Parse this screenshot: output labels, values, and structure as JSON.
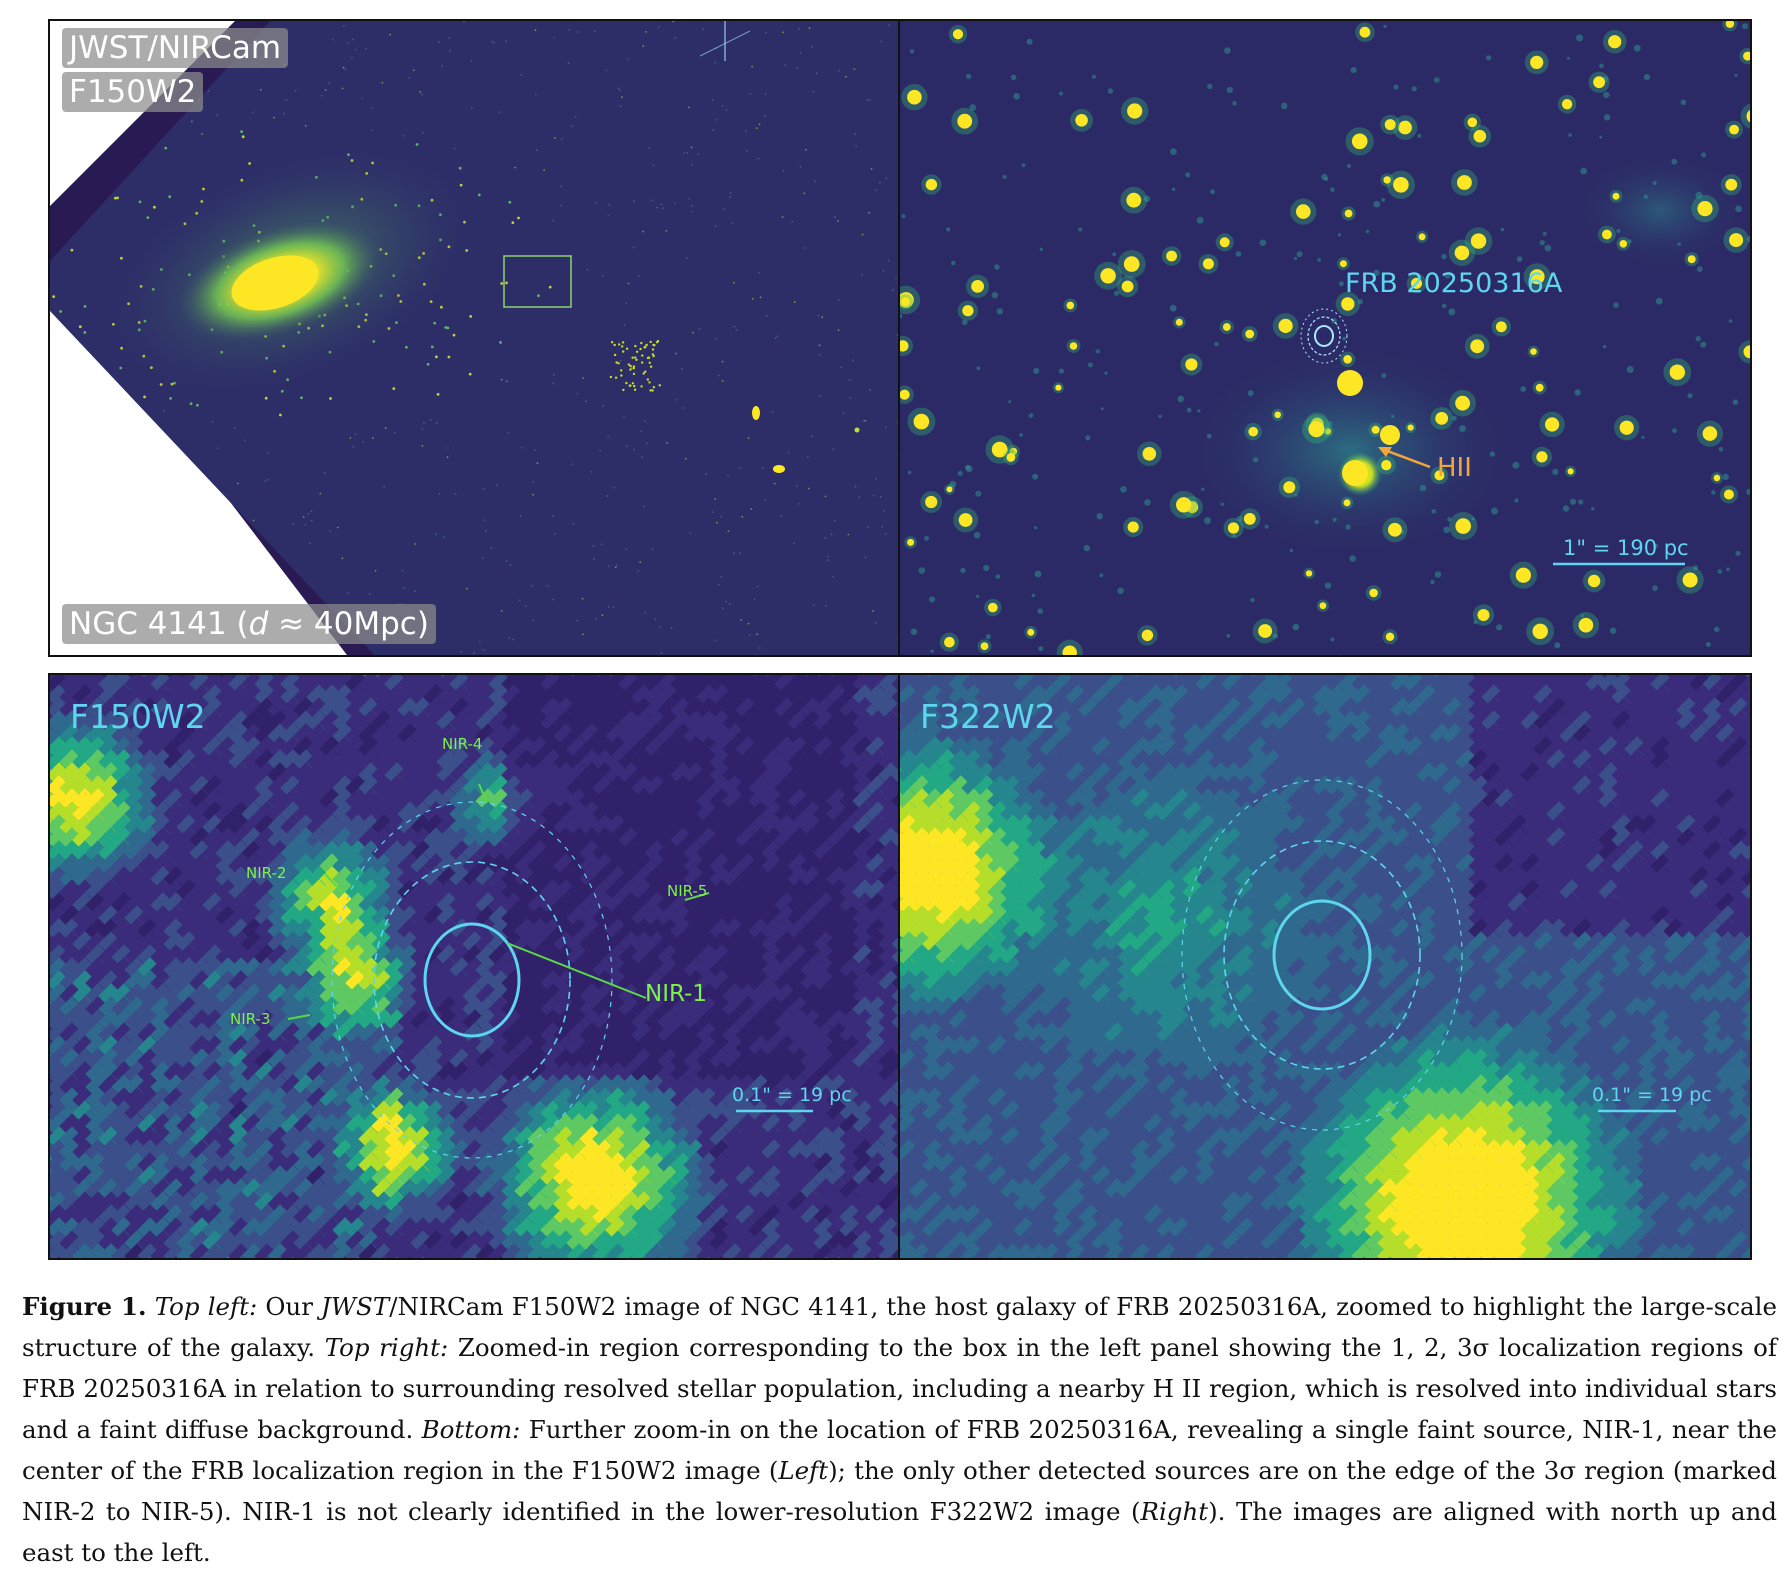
{
  "panels": {
    "top_left": {
      "label_instrument": "JWST/NIRCam",
      "label_filter": "F150W2",
      "label_target_prefix": "NGC 4141 (",
      "label_target_var": "d",
      "label_target_suffix": " ≈ 40Mpc)"
    },
    "top_right": {
      "frb_label": "FRB 20250316A",
      "hii_label": "HII",
      "scale_label": "1\" = 190 pc"
    },
    "bottom_left": {
      "filter": "F150W2",
      "sources": {
        "nir1": "NIR-1",
        "nir2": "NIR-2",
        "nir3": "NIR-3",
        "nir4": "NIR-4",
        "nir5": "NIR-5"
      },
      "scale_label": "0.1\" = 19 pc"
    },
    "bottom_right": {
      "filter": "F322W2",
      "scale_label": "0.1\" = 19 pc"
    }
  },
  "caption": {
    "fig_label": "Figure 1.",
    "seg1_italic": "Top left:",
    "seg2": " Our ",
    "seg3_italic": "JWST",
    "seg4": "/NIRCam F150W2 image of NGC 4141, the host galaxy of FRB 20250316A, zoomed to highlight the large-scale structure of the galaxy. ",
    "seg5_italic": "Top right:",
    "seg6": " Zoomed-in region corresponding to the box in the left panel showing the 1, 2, 3σ localization regions of FRB 20250316A in relation to surrounding resolved stellar population, including a nearby H II region, which is resolved into individual stars and a faint diffuse background. ",
    "seg7_italic": "Bottom:",
    "seg8": " Further zoom-in on the location of FRB 20250316A, revealing a single faint source, NIR-1, near the center of the FRB localization region in the F150W2 image (",
    "seg9_italic": "Left",
    "seg10": "); the only other detected sources are on the edge of the 3σ region (marked NIR-2 to NIR-5). NIR-1 is not clearly identified in the lower-resolution F322W2 image (",
    "seg11_italic": "Right",
    "seg12": "). The images are aligned with north up and east to the left."
  },
  "colors": {
    "bg_dark": "#2b1d5c",
    "bg_mid": "#33376e",
    "viridis_yellow": "#fde725",
    "viridis_green": "#7ad151",
    "viridis_teal": "#22a884",
    "label_cyan": "#5fd6f0",
    "label_orange": "#f3a43b",
    "label_green": "#7df24a"
  }
}
